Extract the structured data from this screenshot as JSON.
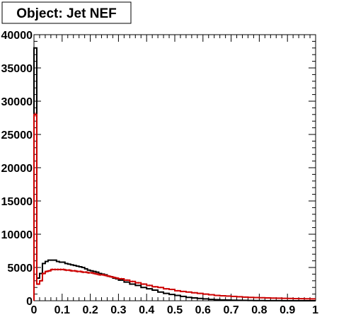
{
  "chart_data": {
    "type": "line",
    "title": "Object: Jet NEF",
    "xlabel": "",
    "ylabel": "",
    "xlim": [
      0,
      1
    ],
    "ylim": [
      0,
      40000
    ],
    "x_ticks": [
      "0",
      "0.1",
      "0.2",
      "0.3",
      "0.4",
      "0.5",
      "0.6",
      "0.7",
      "0.8",
      "0.9",
      "1"
    ],
    "y_ticks": [
      "0",
      "5000",
      "10000",
      "15000",
      "20000",
      "25000",
      "30000",
      "35000",
      "40000"
    ],
    "grid": false,
    "legend": "none",
    "bin_width": 0.01,
    "series": [
      {
        "color": "#000000",
        "style": "step",
        "x": [
          0.0,
          0.01,
          0.02,
          0.03,
          0.04,
          0.05,
          0.06,
          0.07,
          0.08,
          0.09,
          0.1,
          0.11,
          0.12,
          0.13,
          0.14,
          0.15,
          0.16,
          0.17,
          0.18,
          0.19,
          0.2,
          0.21,
          0.22,
          0.23,
          0.24,
          0.25,
          0.26,
          0.27,
          0.28,
          0.29,
          0.3,
          0.32,
          0.34,
          0.36,
          0.38,
          0.4,
          0.42,
          0.44,
          0.46,
          0.48,
          0.5,
          0.52,
          0.54,
          0.56,
          0.58,
          0.6,
          0.62,
          0.64,
          0.66,
          0.68,
          0.7,
          0.72,
          0.74,
          0.76,
          0.78,
          0.8,
          0.82,
          0.84,
          0.86,
          0.88,
          0.9,
          0.92,
          0.94,
          0.96,
          0.98
        ],
        "y": [
          38000,
          3400,
          4100,
          5600,
          5900,
          6100,
          6100,
          6100,
          5900,
          5800,
          5800,
          5600,
          5500,
          5400,
          5300,
          5200,
          5100,
          5000,
          4800,
          4600,
          4500,
          4400,
          4300,
          4100,
          4000,
          3900,
          3700,
          3600,
          3400,
          3300,
          3100,
          2800,
          2500,
          2300,
          2000,
          1800,
          1600,
          1300,
          1100,
          950,
          800,
          650,
          500,
          420,
          350,
          280,
          200,
          160,
          120,
          100,
          80,
          60,
          50,
          40,
          30,
          20,
          15,
          10,
          8,
          6,
          5,
          4,
          3,
          2,
          1
        ]
      },
      {
        "color": "#cc0000",
        "style": "step-errorbar",
        "x": [
          0.0,
          0.01,
          0.02,
          0.03,
          0.04,
          0.05,
          0.06,
          0.07,
          0.08,
          0.09,
          0.1,
          0.11,
          0.12,
          0.13,
          0.14,
          0.15,
          0.16,
          0.17,
          0.18,
          0.19,
          0.2,
          0.21,
          0.22,
          0.23,
          0.24,
          0.25,
          0.26,
          0.27,
          0.28,
          0.29,
          0.3,
          0.32,
          0.34,
          0.36,
          0.38,
          0.4,
          0.42,
          0.44,
          0.46,
          0.48,
          0.5,
          0.52,
          0.54,
          0.56,
          0.58,
          0.6,
          0.62,
          0.64,
          0.66,
          0.68,
          0.7,
          0.72,
          0.74,
          0.76,
          0.78,
          0.8,
          0.82,
          0.84,
          0.86,
          0.88,
          0.9,
          0.92,
          0.94,
          0.96,
          0.98
        ],
        "y": [
          28000,
          2500,
          3000,
          4100,
          4400,
          4500,
          4700,
          4700,
          4700,
          4700,
          4700,
          4600,
          4600,
          4500,
          4500,
          4400,
          4400,
          4300,
          4300,
          4200,
          4200,
          4100,
          4000,
          3900,
          3900,
          3800,
          3700,
          3600,
          3500,
          3400,
          3300,
          3100,
          2900,
          2700,
          2500,
          2300,
          2100,
          2000,
          1800,
          1700,
          1500,
          1400,
          1300,
          1200,
          1100,
          1000,
          900,
          800,
          750,
          700,
          650,
          600,
          550,
          500,
          480,
          450,
          420,
          400,
          380,
          360,
          340,
          320,
          300,
          290,
          280
        ]
      }
    ]
  }
}
